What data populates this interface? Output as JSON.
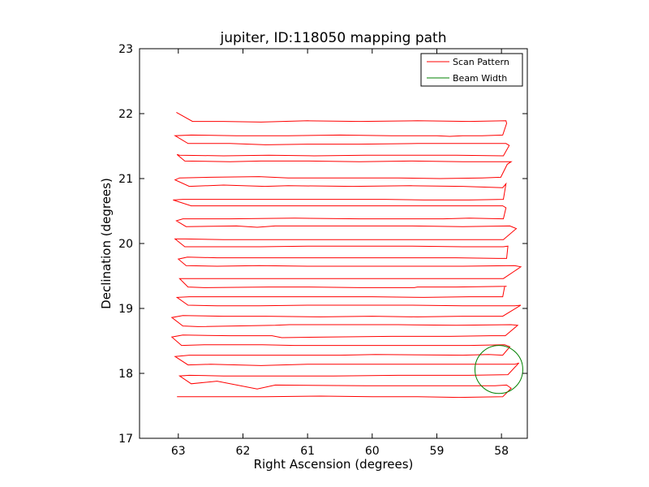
{
  "chart_data": {
    "type": "line",
    "title": "jupiter, ID:118050 mapping path",
    "xlabel": "Right Ascension (degrees)",
    "ylabel": "Declination (degrees)",
    "xlim": [
      63.6,
      57.6
    ],
    "ylim": [
      17,
      23
    ],
    "xticks": [
      63,
      62,
      61,
      60,
      59,
      58
    ],
    "yticks": [
      17,
      18,
      19,
      20,
      21,
      22,
      23
    ],
    "grid": false,
    "legend_position": "top-right",
    "colors": {
      "scan": "#ff0000",
      "beam": "#008000"
    },
    "series": [
      {
        "name": "Scan Pattern",
        "color": "#ff0000",
        "x": [
          63.02,
          62.3,
          61.65,
          60.8,
          60.0,
          59.3,
          58.66,
          57.98,
          57.85,
          57.92,
          58.1,
          58.7,
          59.5,
          60.1,
          61.5,
          61.78,
          62.4,
          62.8,
          62.98,
          62.83,
          62.3,
          61.6,
          60.6,
          59.6,
          58.5,
          57.9,
          57.73,
          57.79,
          58.3,
          59.35,
          60.2,
          61.0,
          61.72,
          62.5,
          62.85,
          63.05,
          62.83,
          62.1,
          61.2,
          60.5,
          59.95,
          58.6,
          58.2,
          57.98,
          57.87,
          57.95,
          58.5,
          59.5,
          60.5,
          61.2,
          61.7,
          62.6,
          62.95,
          63.1,
          62.93,
          62.2,
          61.55,
          61.4,
          60.7,
          59.7,
          58.8,
          58.16,
          57.94,
          57.75,
          57.85,
          58.7,
          59.6,
          60.5,
          61.28,
          61.5,
          62.7,
          62.93,
          63.1,
          62.93,
          62.3,
          61.65,
          60.8,
          60.0,
          59.3,
          58.6,
          57.98,
          57.7,
          57.79,
          58.6,
          59.4,
          60.2,
          61.0,
          61.75,
          62.4,
          62.85,
          63.02,
          62.83,
          62.2,
          61.72,
          60.8,
          60.0,
          59.2,
          58.5,
          57.98,
          57.95,
          57.92,
          58.7,
          59.3,
          59.35,
          60.2,
          61.0,
          61.6,
          62.6,
          62.85,
          62.98,
          62.83,
          62.2,
          61.5,
          60.8,
          60.0,
          59.3,
          58.6,
          57.97,
          57.7,
          57.8,
          58.6,
          59.5,
          60.3,
          61.0,
          61.75,
          62.4,
          62.88,
          63.0,
          62.86,
          62.4,
          61.72,
          61.0,
          60.2,
          59.5,
          58.7,
          58.05,
          57.92,
          57.9,
          57.97,
          58.6,
          59.4,
          60.2,
          61.0,
          61.72,
          62.4,
          62.9,
          63.05,
          62.9,
          62.3,
          61.5,
          60.7,
          59.9,
          59.2,
          58.5,
          57.97,
          57.77,
          57.87,
          58.6,
          59.4,
          60.3,
          61.5,
          61.78,
          62.1,
          62.88,
          63.03,
          62.93,
          62.2,
          61.2,
          60.2,
          59.6,
          58.9,
          58.5,
          57.97,
          57.93,
          57.98,
          58.6,
          59.6,
          60.4,
          61.5,
          61.72,
          62.3,
          62.8,
          63.08,
          62.93,
          62.2,
          61.58,
          60.6,
          59.8,
          59.2,
          58.5,
          57.97,
          57.93,
          57.98,
          58.6,
          59.4,
          60.3,
          61.3,
          61.66,
          62.3,
          62.83,
          63.05,
          62.98,
          62.5,
          61.75,
          61.3,
          60.4,
          59.6,
          58.95,
          58.3,
          58.01,
          57.91,
          57.85,
          58.6,
          59.4,
          60.2,
          61.0,
          61.72,
          62.2,
          62.9,
          63.02,
          62.98,
          62.3,
          61.6,
          60.9,
          60.1,
          59.4,
          58.7,
          57.97,
          57.88,
          57.93,
          58.6,
          59.3,
          60.2,
          61.0,
          61.65,
          62.2,
          62.85,
          63.05,
          62.8,
          62.1,
          61.3,
          60.5,
          59.7,
          59.0,
          58.8,
          58.6,
          58.3,
          57.98,
          57.92,
          57.93,
          58.5,
          59.3,
          60.2,
          61.0,
          61.72,
          62.3,
          62.78,
          63.03
        ],
        "y": [
          17.64,
          17.64,
          17.64,
          17.65,
          17.64,
          17.64,
          17.63,
          17.64,
          17.77,
          17.82,
          17.81,
          17.81,
          17.81,
          17.81,
          17.82,
          17.76,
          17.88,
          17.84,
          17.96,
          17.97,
          17.96,
          17.96,
          17.96,
          17.97,
          17.97,
          17.98,
          18.16,
          18.14,
          18.14,
          18.14,
          18.14,
          18.14,
          18.12,
          18.14,
          18.13,
          18.26,
          18.28,
          18.28,
          18.28,
          18.28,
          18.29,
          18.28,
          18.29,
          18.28,
          18.41,
          18.44,
          18.43,
          18.43,
          18.43,
          18.43,
          18.44,
          18.44,
          18.43,
          18.56,
          18.59,
          18.58,
          18.58,
          18.55,
          18.56,
          18.57,
          18.57,
          18.58,
          18.58,
          18.74,
          18.75,
          18.74,
          18.75,
          18.75,
          18.75,
          18.74,
          18.72,
          18.73,
          18.86,
          18.89,
          18.88,
          18.88,
          18.87,
          18.88,
          18.87,
          18.88,
          18.88,
          19.05,
          19.04,
          19.04,
          19.05,
          19.05,
          19.05,
          19.04,
          19.04,
          19.05,
          19.17,
          19.18,
          19.18,
          19.18,
          19.18,
          19.18,
          19.17,
          19.18,
          19.18,
          19.34,
          19.34,
          19.33,
          19.33,
          19.32,
          19.32,
          19.33,
          19.33,
          19.32,
          19.33,
          19.46,
          19.46,
          19.46,
          19.46,
          19.46,
          19.46,
          19.46,
          19.46,
          19.46,
          19.64,
          19.66,
          19.65,
          19.65,
          19.65,
          19.65,
          19.66,
          19.65,
          19.66,
          19.76,
          19.79,
          19.78,
          19.78,
          19.78,
          19.78,
          19.78,
          19.78,
          19.77,
          19.77,
          19.96,
          19.95,
          19.95,
          19.96,
          19.96,
          19.96,
          19.95,
          19.95,
          19.95,
          20.07,
          20.07,
          20.06,
          20.06,
          20.06,
          20.06,
          20.06,
          20.06,
          20.06,
          20.23,
          20.27,
          20.26,
          20.27,
          20.27,
          20.27,
          20.25,
          20.27,
          20.26,
          20.35,
          20.38,
          20.38,
          20.39,
          20.38,
          20.38,
          20.38,
          20.39,
          20.38,
          20.55,
          20.58,
          20.58,
          20.58,
          20.58,
          20.58,
          20.58,
          20.58,
          20.58,
          20.67,
          20.68,
          20.68,
          20.68,
          20.68,
          20.68,
          20.67,
          20.67,
          20.68,
          20.92,
          20.86,
          20.88,
          20.89,
          20.88,
          20.89,
          20.88,
          20.9,
          20.88,
          20.98,
          21.01,
          21.02,
          21.03,
          21.01,
          21.01,
          21.01,
          21.0,
          21.01,
          21.02,
          21.22,
          21.26,
          21.26,
          21.27,
          21.26,
          21.27,
          21.27,
          21.26,
          21.27,
          21.37,
          21.36,
          21.35,
          21.36,
          21.35,
          21.36,
          21.36,
          21.36,
          21.35,
          21.51,
          21.54,
          21.54,
          21.54,
          21.53,
          21.53,
          21.52,
          21.54,
          21.54,
          21.66,
          21.67,
          21.66,
          21.66,
          21.67,
          21.66,
          21.66,
          21.65,
          21.66,
          21.66,
          21.67,
          21.85,
          21.89,
          21.88,
          21.89,
          21.88,
          21.89,
          21.87,
          21.88,
          21.88,
          22.02
        ]
      },
      {
        "name": "Beam Width",
        "color": "#008000",
        "center": [
          58.04,
          18.06
        ],
        "radius": 0.37
      }
    ],
    "legend": [
      "Scan Pattern",
      "Beam Width"
    ]
  }
}
